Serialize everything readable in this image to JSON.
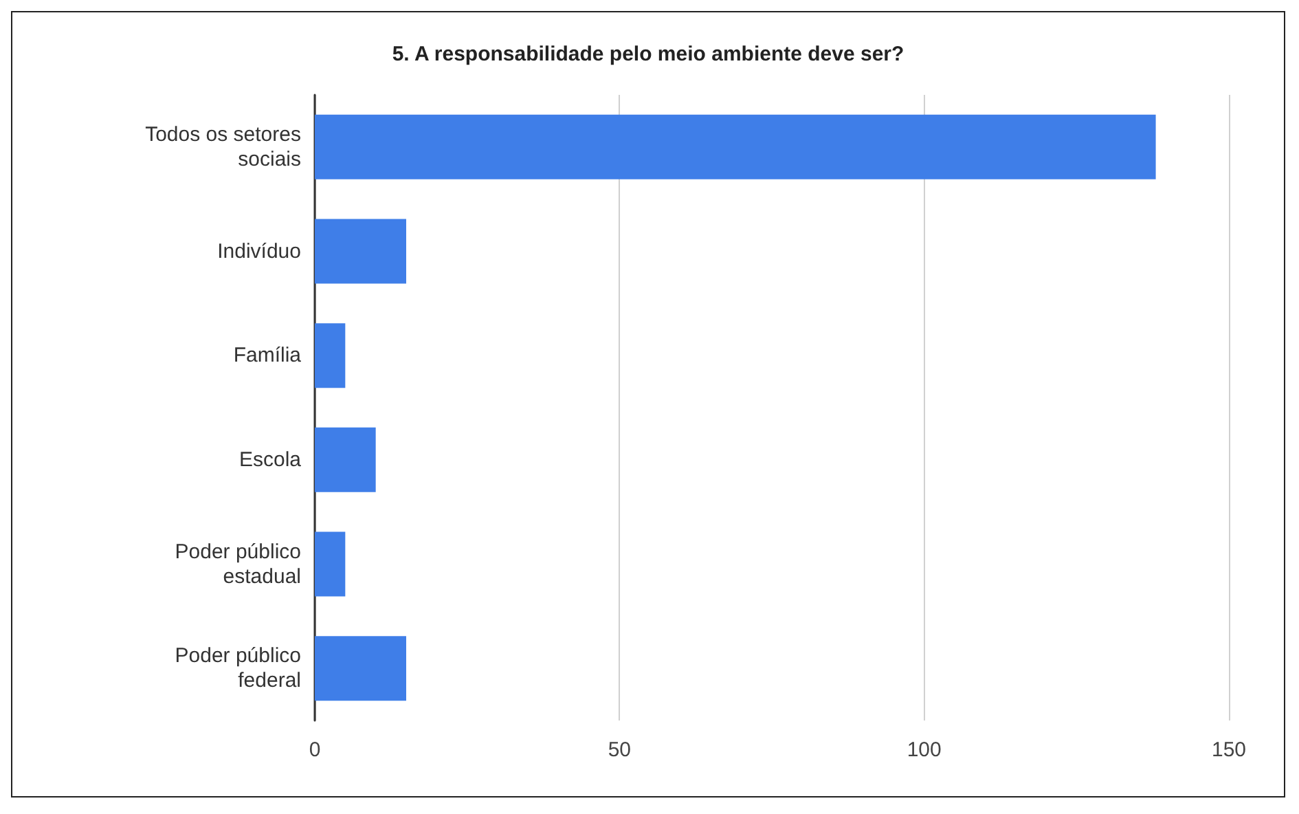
{
  "chart_data": {
    "type": "bar",
    "orientation": "horizontal",
    "title": "5. A responsabilidade pelo meio ambiente deve ser?",
    "categories": [
      "Todos os setores\nsociais",
      "Indivíduo",
      "Família",
      "Escola",
      "Poder público\nestadual",
      "Poder público\nfederal"
    ],
    "values": [
      138,
      15,
      5,
      10,
      5,
      15
    ],
    "color": "#3f7ee8",
    "xlim": [
      0,
      150
    ],
    "xticks": [
      0,
      50,
      100,
      150
    ],
    "grid": "x"
  }
}
